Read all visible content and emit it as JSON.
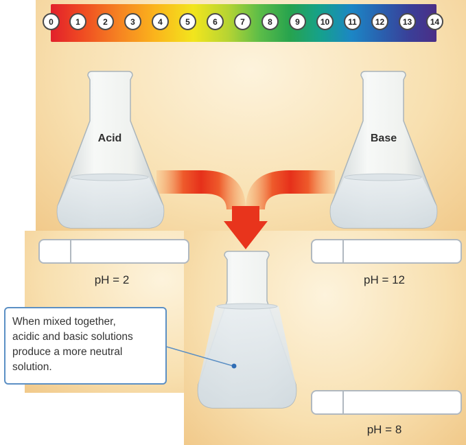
{
  "ph_scale": {
    "ticks": [
      "0",
      "1",
      "2",
      "3",
      "4",
      "5",
      "6",
      "7",
      "8",
      "9",
      "10",
      "11",
      "12",
      "13",
      "14"
    ]
  },
  "flasks": {
    "acid": {
      "label": "Acid",
      "ph_text": "pH = 2"
    },
    "base": {
      "label": "Base",
      "ph_text": "pH = 12"
    },
    "mixed": {
      "label": "",
      "ph_text": "pH = 8"
    }
  },
  "callout": {
    "lines": [
      "When mixed together,",
      "acidic and basic solutions",
      "produce a more neutral",
      "solution."
    ]
  },
  "colors": {
    "arrow": "#e8341c",
    "callout_border": "#5b8fc4",
    "strip_border": "#b0b8c0"
  }
}
